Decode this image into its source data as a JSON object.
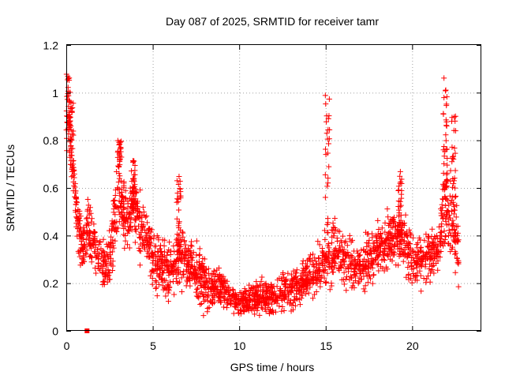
{
  "chart_data": {
    "type": "scatter",
    "title": "Day 087 of 2025, SRMTID for receiver tamr",
    "xlabel": "GPS time / hours",
    "ylabel": "SRMTID / TECUs",
    "xlim": [
      0,
      24
    ],
    "ylim": [
      0,
      1.2
    ],
    "xticks": [
      0,
      5,
      10,
      15,
      20
    ],
    "xtick_labels": [
      "0",
      "5",
      "10",
      "15",
      "20"
    ],
    "yticks": [
      0,
      0.2,
      0.4,
      0.6,
      0.8,
      1,
      1.2
    ],
    "ytick_labels": [
      "0",
      "0.2",
      "0.4",
      "0.6",
      "0.8",
      "1",
      "1.2"
    ],
    "grid": true,
    "marker": "plus",
    "color": "#ff0000",
    "outlier_marker": {
      "x": 1.2,
      "y": 0.0,
      "shape": "square"
    },
    "profile": {
      "x": [
        0.0,
        0.1,
        0.2,
        0.3,
        0.5,
        0.8,
        1.0,
        1.3,
        1.6,
        2.0,
        2.3,
        2.6,
        2.8,
        3.0,
        3.3,
        3.6,
        3.9,
        4.2,
        4.5,
        4.8,
        5.0,
        5.5,
        6.0,
        6.5,
        7.0,
        7.5,
        8.0,
        8.5,
        9.0,
        9.5,
        10.0,
        10.5,
        11.0,
        11.5,
        12.0,
        12.5,
        13.0,
        13.5,
        14.0,
        14.5,
        15.0,
        15.5,
        16.0,
        16.5,
        17.0,
        17.5,
        18.0,
        18.5,
        19.0,
        19.5,
        20.0,
        20.5,
        21.0,
        21.5,
        21.8,
        22.0,
        22.3,
        22.6
      ],
      "y": [
        0.85,
        0.95,
        0.9,
        0.75,
        0.55,
        0.4,
        0.35,
        0.45,
        0.35,
        0.3,
        0.28,
        0.35,
        0.45,
        0.55,
        0.5,
        0.45,
        0.55,
        0.45,
        0.4,
        0.35,
        0.3,
        0.28,
        0.25,
        0.3,
        0.3,
        0.25,
        0.2,
        0.18,
        0.2,
        0.14,
        0.12,
        0.12,
        0.14,
        0.13,
        0.15,
        0.16,
        0.18,
        0.2,
        0.22,
        0.25,
        0.3,
        0.32,
        0.3,
        0.26,
        0.26,
        0.3,
        0.34,
        0.36,
        0.4,
        0.38,
        0.3,
        0.3,
        0.32,
        0.35,
        0.5,
        0.55,
        0.45,
        0.35
      ],
      "spread": [
        0.12,
        0.1,
        0.1,
        0.1,
        0.1,
        0.1,
        0.1,
        0.12,
        0.1,
        0.08,
        0.08,
        0.12,
        0.14,
        0.14,
        0.12,
        0.12,
        0.12,
        0.12,
        0.1,
        0.1,
        0.1,
        0.1,
        0.1,
        0.1,
        0.1,
        0.1,
        0.1,
        0.08,
        0.08,
        0.05,
        0.05,
        0.05,
        0.06,
        0.06,
        0.07,
        0.07,
        0.08,
        0.08,
        0.08,
        0.08,
        0.1,
        0.1,
        0.1,
        0.08,
        0.08,
        0.1,
        0.1,
        0.1,
        0.1,
        0.1,
        0.1,
        0.1,
        0.1,
        0.1,
        0.15,
        0.18,
        0.15,
        0.12
      ]
    },
    "spikes": [
      {
        "x": 0.05,
        "y_min": 0.85,
        "y_max": 1.1
      },
      {
        "x": 0.3,
        "y_min": 0.7,
        "y_max": 0.98
      },
      {
        "x": 3.1,
        "y_min": 0.6,
        "y_max": 0.8
      },
      {
        "x": 3.9,
        "y_min": 0.5,
        "y_max": 0.73
      },
      {
        "x": 6.5,
        "y_min": 0.35,
        "y_max": 0.65
      },
      {
        "x": 15.1,
        "y_min": 0.4,
        "y_max": 0.99
      },
      {
        "x": 19.3,
        "y_min": 0.4,
        "y_max": 0.67
      },
      {
        "x": 21.9,
        "y_min": 0.6,
        "y_max": 1.09
      },
      {
        "x": 22.4,
        "y_min": 0.5,
        "y_max": 0.92
      }
    ],
    "n_points": 2400
  }
}
